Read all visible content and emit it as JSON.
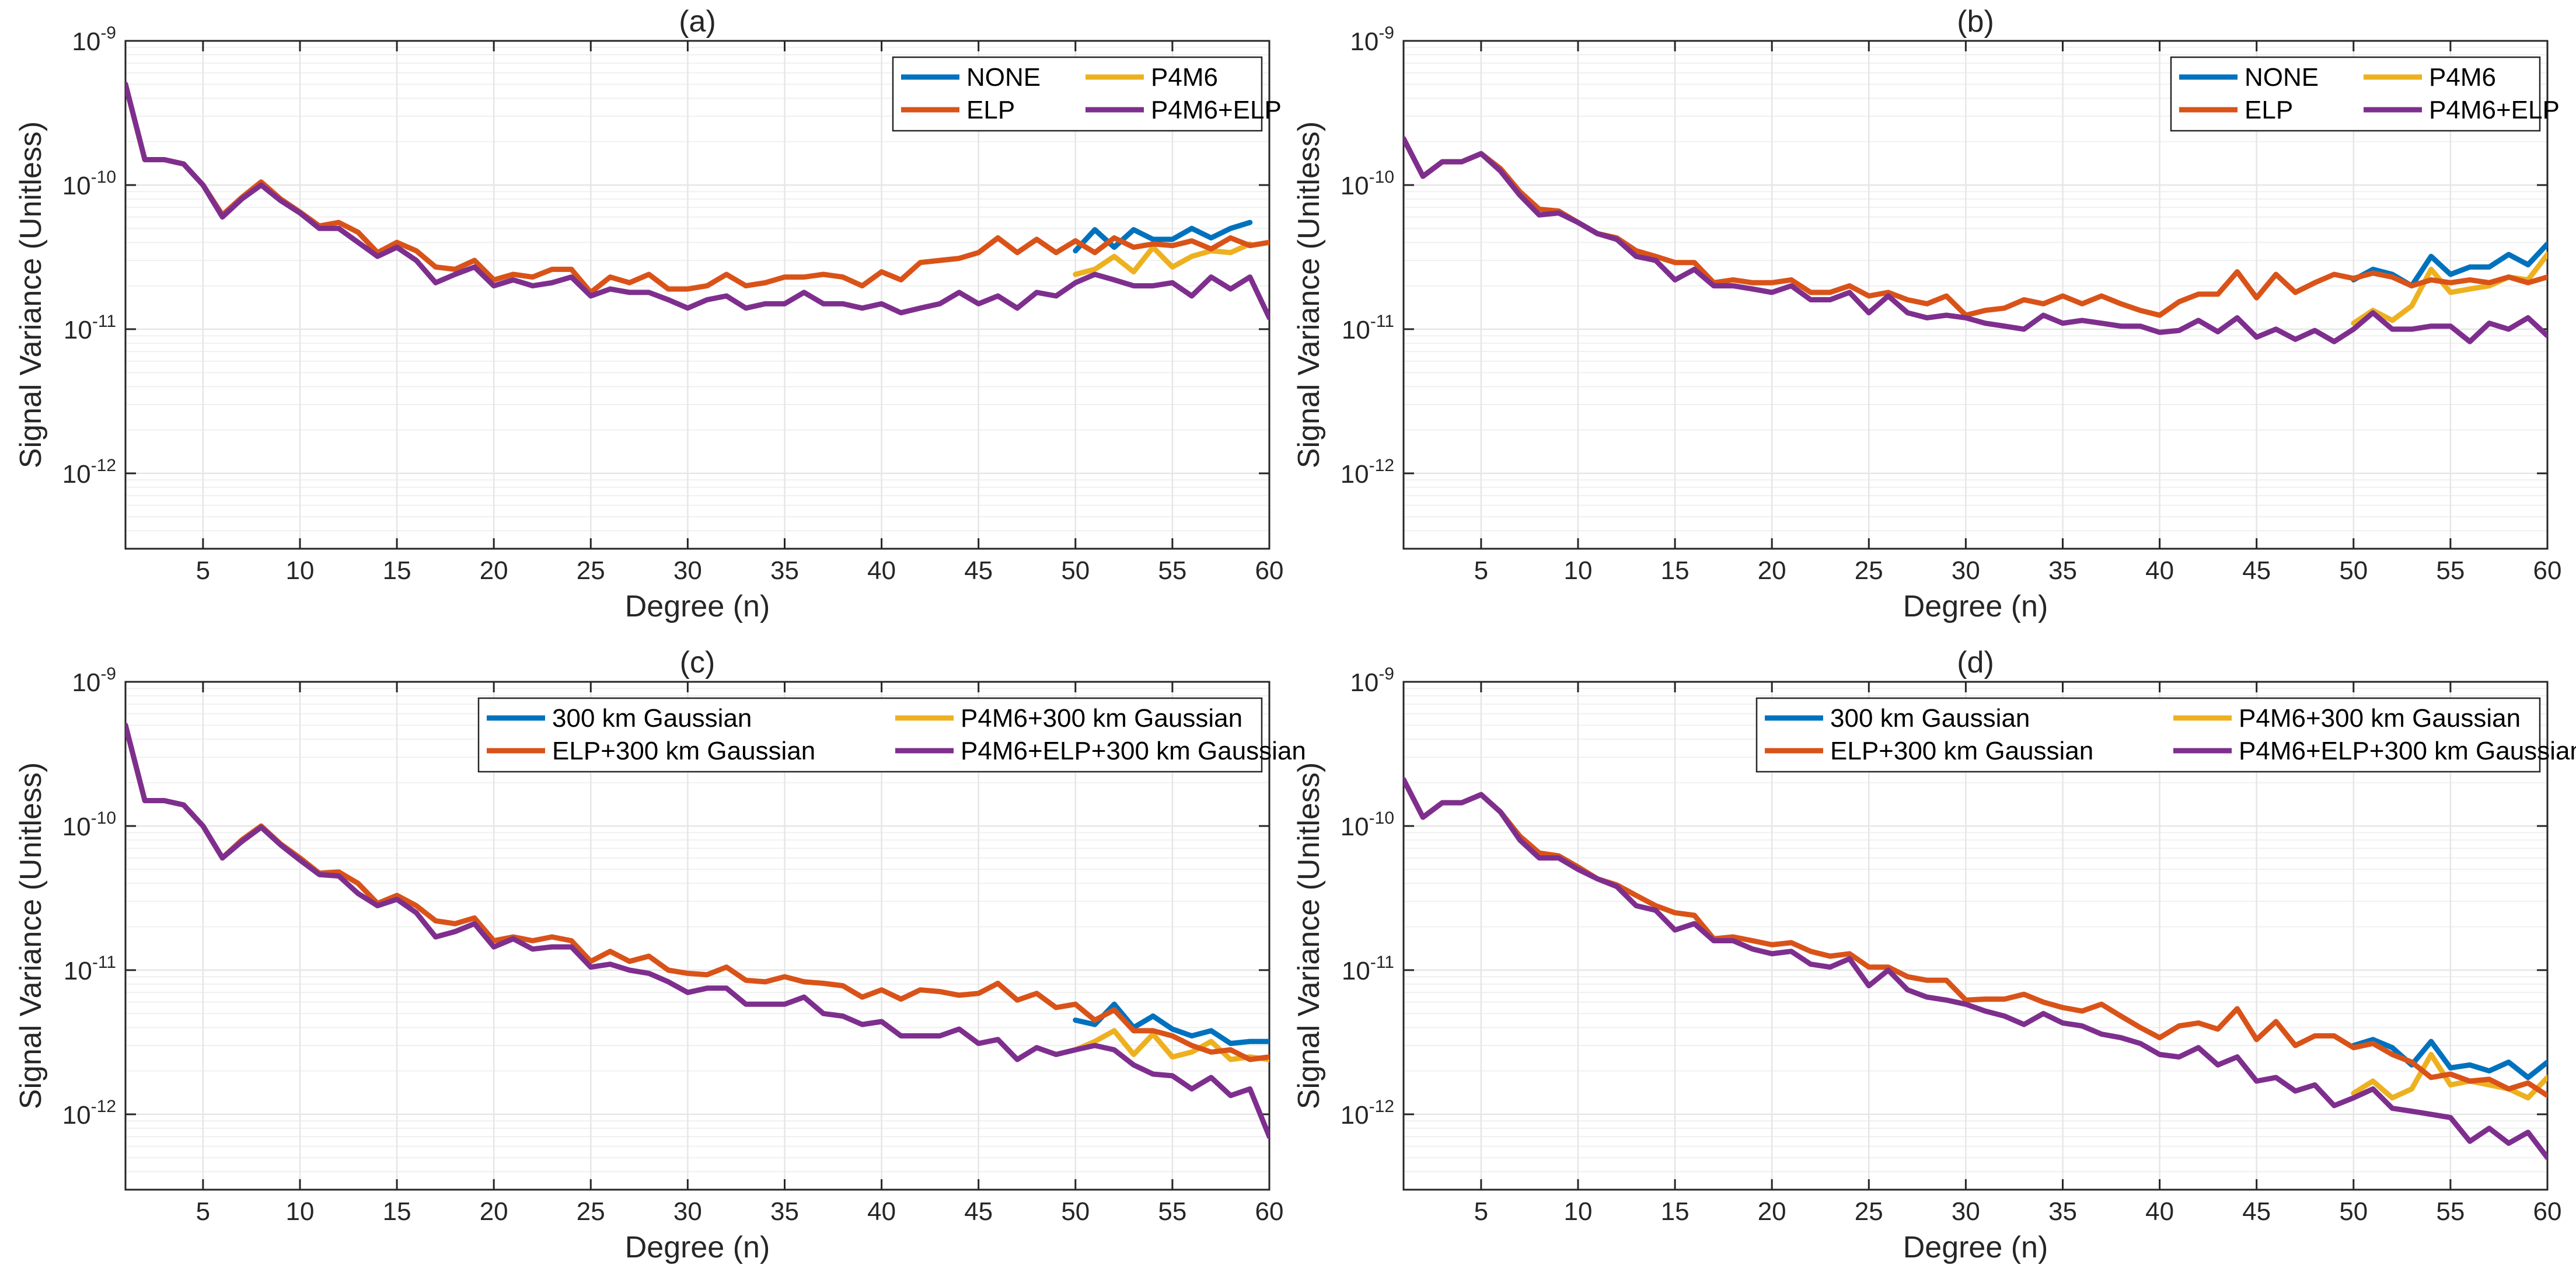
{
  "colors": {
    "blue": "#0072BD",
    "orange": "#D95319",
    "yellow": "#EDB120",
    "purple": "#7E2F8E",
    "grid": "#e6e6e6",
    "axis": "#262626"
  },
  "chart_data": [
    {
      "panel": "a",
      "type": "line",
      "title": "(a)",
      "xlabel": "Degree (n)",
      "ylabel": "Signal Variance (Unitless)",
      "xlim": [
        1,
        60
      ],
      "ylim": [
        3e-13,
        1e-09
      ],
      "yscale": "log",
      "xticks": [
        "5",
        "10",
        "15",
        "20",
        "25",
        "30",
        "35",
        "40",
        "45",
        "50",
        "55",
        "60"
      ],
      "yticks": [
        {
          "base": "10",
          "exp": "-9"
        },
        {
          "base": "10",
          "exp": "-10"
        },
        {
          "base": "10",
          "exp": "-11"
        },
        {
          "base": "10",
          "exp": "-12"
        }
      ],
      "legend_position": "top-right",
      "series": [
        {
          "name": "NONE",
          "color_key": "blue",
          "x_start": 50,
          "values": [
            3.5e-11,
            4.9e-11,
            3.7e-11,
            4.9e-11,
            4.2e-11,
            4.2e-11,
            5e-11,
            4.3e-11,
            5e-11,
            5.5e-11
          ]
        },
        {
          "name": "ELP",
          "color_key": "orange",
          "x_start": 1,
          "values": [
            5e-10,
            1.5e-10,
            1.5e-10,
            1.4e-10,
            1e-10,
            6.2e-11,
            8.2e-11,
            1.05e-10,
            8e-11,
            6.5e-11,
            5.2e-11,
            5.5e-11,
            4.7e-11,
            3.4e-11,
            4e-11,
            3.5e-11,
            2.7e-11,
            2.6e-11,
            3e-11,
            2.2e-11,
            2.4e-11,
            2.3e-11,
            2.6e-11,
            2.6e-11,
            1.8e-11,
            2.3e-11,
            2.1e-11,
            2.4e-11,
            1.9e-11,
            1.9e-11,
            2e-11,
            2.4e-11,
            2e-11,
            2.1e-11,
            2.3e-11,
            2.3e-11,
            2.4e-11,
            2.3e-11,
            2e-11,
            2.5e-11,
            2.2e-11,
            2.9e-11,
            3e-11,
            3.1e-11,
            3.4e-11,
            4.3e-11,
            3.4e-11,
            4.2e-11,
            3.4e-11,
            4.1e-11,
            3.4e-11,
            4.3e-11,
            3.7e-11,
            3.9e-11,
            3.8e-11,
            4.1e-11,
            3.6e-11,
            4.3e-11,
            3.8e-11,
            4e-11
          ]
        },
        {
          "name": "P4M6",
          "color_key": "yellow",
          "x_start": 50,
          "values": [
            2.4e-11,
            2.6e-11,
            3.2e-11,
            2.5e-11,
            3.7e-11,
            2.7e-11,
            3.2e-11,
            3.5e-11,
            3.4e-11,
            3.9e-11
          ]
        },
        {
          "name": "P4M6+ELP",
          "color_key": "purple",
          "x_start": 1,
          "values": [
            5e-10,
            1.5e-10,
            1.5e-10,
            1.4e-10,
            1e-10,
            6e-11,
            8e-11,
            1e-10,
            7.8e-11,
            6.4e-11,
            5e-11,
            5e-11,
            4e-11,
            3.2e-11,
            3.7e-11,
            3e-11,
            2.1e-11,
            2.4e-11,
            2.7e-11,
            2e-11,
            2.2e-11,
            2e-11,
            2.1e-11,
            2.3e-11,
            1.7e-11,
            1.9e-11,
            1.8e-11,
            1.8e-11,
            1.6e-11,
            1.4e-11,
            1.6e-11,
            1.7e-11,
            1.4e-11,
            1.5e-11,
            1.5e-11,
            1.8e-11,
            1.5e-11,
            1.5e-11,
            1.4e-11,
            1.5e-11,
            1.3e-11,
            1.4e-11,
            1.5e-11,
            1.8e-11,
            1.5e-11,
            1.7e-11,
            1.4e-11,
            1.8e-11,
            1.7e-11,
            2.1e-11,
            2.4e-11,
            2.2e-11,
            2e-11,
            2e-11,
            2.1e-11,
            1.7e-11,
            2.3e-11,
            1.9e-11,
            2.3e-11,
            1.2e-11
          ]
        }
      ]
    },
    {
      "panel": "b",
      "type": "line",
      "title": "(b)",
      "xlabel": "Degree (n)",
      "ylabel": "Signal Variance (Unitless)",
      "xlim": [
        1,
        60
      ],
      "ylim": [
        3e-13,
        1e-09
      ],
      "yscale": "log",
      "xticks": [
        "5",
        "10",
        "15",
        "20",
        "25",
        "30",
        "35",
        "40",
        "45",
        "50",
        "55",
        "60"
      ],
      "yticks": [
        {
          "base": "10",
          "exp": "-9"
        },
        {
          "base": "10",
          "exp": "-10"
        },
        {
          "base": "10",
          "exp": "-11"
        },
        {
          "base": "10",
          "exp": "-12"
        }
      ],
      "legend_position": "top-right",
      "series": [
        {
          "name": "NONE",
          "color_key": "blue",
          "x_start": 50,
          "values": [
            2.2e-11,
            2.6e-11,
            2.4e-11,
            2e-11,
            3.2e-11,
            2.4e-11,
            2.7e-11,
            2.7e-11,
            3.3e-11,
            2.8e-11,
            3.9e-11
          ]
        },
        {
          "name": "ELP",
          "color_key": "orange",
          "x_start": 1,
          "values": [
            2.1e-10,
            1.15e-10,
            1.45e-10,
            1.45e-10,
            1.65e-10,
            1.3e-10,
            9e-11,
            6.8e-11,
            6.6e-11,
            5.5e-11,
            4.6e-11,
            4.3e-11,
            3.5e-11,
            3.2e-11,
            2.9e-11,
            2.9e-11,
            2.1e-11,
            2.2e-11,
            2.1e-11,
            2.1e-11,
            2.2e-11,
            1.8e-11,
            1.8e-11,
            2e-11,
            1.7e-11,
            1.8e-11,
            1.6e-11,
            1.5e-11,
            1.7e-11,
            1.25e-11,
            1.35e-11,
            1.4e-11,
            1.6e-11,
            1.5e-11,
            1.7e-11,
            1.5e-11,
            1.7e-11,
            1.5e-11,
            1.35e-11,
            1.25e-11,
            1.55e-11,
            1.75e-11,
            1.75e-11,
            2.5e-11,
            1.65e-11,
            2.4e-11,
            1.8e-11,
            2.1e-11,
            2.4e-11,
            2.25e-11,
            2.45e-11,
            2.3e-11,
            2e-11,
            2.2e-11,
            2.1e-11,
            2.2e-11,
            2.1e-11,
            2.3e-11,
            2.1e-11,
            2.3e-11
          ]
        },
        {
          "name": "P4M6",
          "color_key": "yellow",
          "x_start": 50,
          "values": [
            1.1e-11,
            1.35e-11,
            1.15e-11,
            1.45e-11,
            2.6e-11,
            1.8e-11,
            1.9e-11,
            2e-11,
            2.3e-11,
            2.2e-11,
            3.3e-11
          ]
        },
        {
          "name": "P4M6+ELP",
          "color_key": "purple",
          "x_start": 1,
          "values": [
            2.1e-10,
            1.15e-10,
            1.45e-10,
            1.45e-10,
            1.65e-10,
            1.25e-10,
            8.5e-11,
            6.2e-11,
            6.4e-11,
            5.5e-11,
            4.6e-11,
            4.2e-11,
            3.2e-11,
            3e-11,
            2.2e-11,
            2.6e-11,
            2e-11,
            2e-11,
            1.9e-11,
            1.8e-11,
            2e-11,
            1.6e-11,
            1.6e-11,
            1.8e-11,
            1.3e-11,
            1.7e-11,
            1.3e-11,
            1.2e-11,
            1.25e-11,
            1.2e-11,
            1.1e-11,
            1.05e-11,
            1e-11,
            1.25e-11,
            1.1e-11,
            1.15e-11,
            1.1e-11,
            1.05e-11,
            1.05e-11,
            9.5e-12,
            9.8e-12,
            1.15e-11,
            9.6e-12,
            1.2e-11,
            8.8e-12,
            1e-11,
            8.5e-12,
            9.8e-12,
            8.2e-12,
            1e-11,
            1.3e-11,
            1e-11,
            1e-11,
            1.05e-11,
            1.05e-11,
            8.2e-12,
            1.1e-11,
            1e-11,
            1.2e-11,
            9e-12
          ]
        }
      ]
    },
    {
      "panel": "c",
      "type": "line",
      "title": "(c)",
      "xlabel": "Degree (n)",
      "ylabel": "Signal Variance (Unitless)",
      "xlim": [
        1,
        60
      ],
      "ylim": [
        3e-13,
        1e-09
      ],
      "yscale": "log",
      "xticks": [
        "5",
        "10",
        "15",
        "20",
        "25",
        "30",
        "35",
        "40",
        "45",
        "50",
        "55",
        "60"
      ],
      "yticks": [
        {
          "base": "10",
          "exp": "-9"
        },
        {
          "base": "10",
          "exp": "-10"
        },
        {
          "base": "10",
          "exp": "-11"
        },
        {
          "base": "10",
          "exp": "-12"
        }
      ],
      "legend_position": "top-right",
      "series": [
        {
          "name": "300 km Gaussian",
          "color_key": "blue",
          "x_start": 50,
          "values": [
            4.5e-12,
            4.2e-12,
            5.8e-12,
            4e-12,
            4.8e-12,
            3.9e-12,
            3.5e-12,
            3.8e-12,
            3.1e-12,
            3.2e-12,
            3.2e-12
          ]
        },
        {
          "name": "ELP+300 km Gaussian",
          "color_key": "orange",
          "x_start": 1,
          "values": [
            5e-10,
            1.5e-10,
            1.5e-10,
            1.4e-10,
            1e-10,
            6e-11,
            8e-11,
            1e-10,
            7.5e-11,
            6e-11,
            4.7e-11,
            4.8e-11,
            4e-11,
            2.9e-11,
            3.3e-11,
            2.8e-11,
            2.2e-11,
            2.1e-11,
            2.3e-11,
            1.6e-11,
            1.7e-11,
            1.6e-11,
            1.7e-11,
            1.6e-11,
            1.15e-11,
            1.35e-11,
            1.15e-11,
            1.25e-11,
            1e-11,
            9.5e-12,
            9.3e-12,
            1.05e-11,
            8.5e-12,
            8.3e-12,
            9e-12,
            8.3e-12,
            8.1e-12,
            7.8e-12,
            6.5e-12,
            7.3e-12,
            6.3e-12,
            7.3e-12,
            7.1e-12,
            6.7e-12,
            6.9e-12,
            8.1e-12,
            6.2e-12,
            6.9e-12,
            5.5e-12,
            5.8e-12,
            4.5e-12,
            5.3e-12,
            3.8e-12,
            3.8e-12,
            3.5e-12,
            3e-12,
            2.7e-12,
            2.8e-12,
            2.4e-12,
            2.5e-12
          ]
        },
        {
          "name": "P4M6+300 km Gaussian",
          "color_key": "yellow",
          "x_start": 50,
          "values": [
            2.8e-12,
            3.2e-12,
            3.8e-12,
            2.6e-12,
            3.6e-12,
            2.5e-12,
            2.7e-12,
            3.2e-12,
            2.4e-12,
            2.5e-12,
            2.4e-12
          ]
        },
        {
          "name": "P4M6+ELP+300 km Gaussian",
          "color_key": "purple",
          "x_start": 1,
          "values": [
            5e-10,
            1.5e-10,
            1.5e-10,
            1.4e-10,
            1e-10,
            6e-11,
            7.8e-11,
            9.8e-11,
            7.4e-11,
            5.8e-11,
            4.6e-11,
            4.5e-11,
            3.4e-11,
            2.8e-11,
            3.1e-11,
            2.5e-11,
            1.7e-11,
            1.85e-11,
            2.1e-11,
            1.45e-11,
            1.65e-11,
            1.4e-11,
            1.45e-11,
            1.45e-11,
            1.05e-11,
            1.1e-11,
            1e-11,
            9.5e-12,
            8.3e-12,
            7e-12,
            7.5e-12,
            7.5e-12,
            5.8e-12,
            5.8e-12,
            5.8e-12,
            6.5e-12,
            5e-12,
            4.8e-12,
            4.2e-12,
            4.4e-12,
            3.5e-12,
            3.5e-12,
            3.5e-12,
            3.9e-12,
            3.1e-12,
            3.3e-12,
            2.4e-12,
            2.9e-12,
            2.6e-12,
            2.8e-12,
            3e-12,
            2.8e-12,
            2.2e-12,
            1.9e-12,
            1.85e-12,
            1.5e-12,
            1.8e-12,
            1.35e-12,
            1.5e-12,
            7e-13
          ]
        }
      ]
    },
    {
      "panel": "d",
      "type": "line",
      "title": "(d)",
      "xlabel": "Degree (n)",
      "ylabel": "Signal Variance (Unitless)",
      "xlim": [
        1,
        60
      ],
      "ylim": [
        3e-13,
        1e-09
      ],
      "yscale": "log",
      "xticks": [
        "5",
        "10",
        "15",
        "20",
        "25",
        "30",
        "35",
        "40",
        "45",
        "50",
        "55",
        "60"
      ],
      "yticks": [
        {
          "base": "10",
          "exp": "-9"
        },
        {
          "base": "10",
          "exp": "-10"
        },
        {
          "base": "10",
          "exp": "-11"
        },
        {
          "base": "10",
          "exp": "-12"
        }
      ],
      "legend_position": "top-right",
      "series": [
        {
          "name": "300 km Gaussian",
          "color_key": "blue",
          "x_start": 50,
          "values": [
            3e-12,
            3.3e-12,
            2.9e-12,
            2.2e-12,
            3.2e-12,
            2.1e-12,
            2.2e-12,
            2e-12,
            2.3e-12,
            1.8e-12,
            2.3e-12
          ]
        },
        {
          "name": "ELP+300 km Gaussian",
          "color_key": "orange",
          "x_start": 1,
          "values": [
            2.1e-10,
            1.15e-10,
            1.45e-10,
            1.45e-10,
            1.65e-10,
            1.25e-10,
            8.5e-11,
            6.5e-11,
            6.2e-11,
            5.2e-11,
            4.3e-11,
            3.9e-11,
            3.3e-11,
            2.8e-11,
            2.5e-11,
            2.4e-11,
            1.65e-11,
            1.7e-11,
            1.6e-11,
            1.5e-11,
            1.55e-11,
            1.35e-11,
            1.25e-11,
            1.3e-11,
            1.05e-11,
            1.05e-11,
            9e-12,
            8.5e-12,
            8.5e-12,
            6.2e-12,
            6.3e-12,
            6.3e-12,
            6.8e-12,
            6e-12,
            5.5e-12,
            5.2e-12,
            5.8e-12,
            4.8e-12,
            4e-12,
            3.4e-12,
            4.1e-12,
            4.3e-12,
            3.9e-12,
            5.4e-12,
            3.3e-12,
            4.4e-12,
            3e-12,
            3.5e-12,
            3.5e-12,
            2.9e-12,
            3.1e-12,
            2.6e-12,
            2.3e-12,
            1.8e-12,
            1.9e-12,
            1.7e-12,
            1.75e-12,
            1.5e-12,
            1.65e-12,
            1.35e-12
          ]
        },
        {
          "name": "P4M6+300 km Gaussian",
          "color_key": "yellow",
          "x_start": 50,
          "values": [
            1.4e-12,
            1.7e-12,
            1.3e-12,
            1.5e-12,
            2.6e-12,
            1.6e-12,
            1.7e-12,
            1.6e-12,
            1.5e-12,
            1.3e-12,
            1.8e-12
          ]
        },
        {
          "name": "P4M6+ELP+300 km Gaussian",
          "color_key": "purple",
          "x_start": 1,
          "values": [
            2.1e-10,
            1.15e-10,
            1.45e-10,
            1.45e-10,
            1.65e-10,
            1.25e-10,
            8e-11,
            6e-11,
            6e-11,
            5e-11,
            4.3e-11,
            3.8e-11,
            2.8e-11,
            2.6e-11,
            1.9e-11,
            2.1e-11,
            1.6e-11,
            1.6e-11,
            1.4e-11,
            1.3e-11,
            1.35e-11,
            1.1e-11,
            1.05e-11,
            1.2e-11,
            7.8e-12,
            1e-11,
            7.3e-12,
            6.5e-12,
            6.2e-12,
            5.8e-12,
            5.2e-12,
            4.8e-12,
            4.2e-12,
            5e-12,
            4.3e-12,
            4.1e-12,
            3.6e-12,
            3.4e-12,
            3.1e-12,
            2.6e-12,
            2.5e-12,
            2.9e-12,
            2.2e-12,
            2.5e-12,
            1.7e-12,
            1.8e-12,
            1.45e-12,
            1.6e-12,
            1.15e-12,
            1.3e-12,
            1.5e-12,
            1.1e-12,
            1.05e-12,
            1e-12,
            9.5e-13,
            6.5e-13,
            8e-13,
            6.3e-13,
            7.5e-13,
            5e-13
          ]
        }
      ]
    }
  ]
}
